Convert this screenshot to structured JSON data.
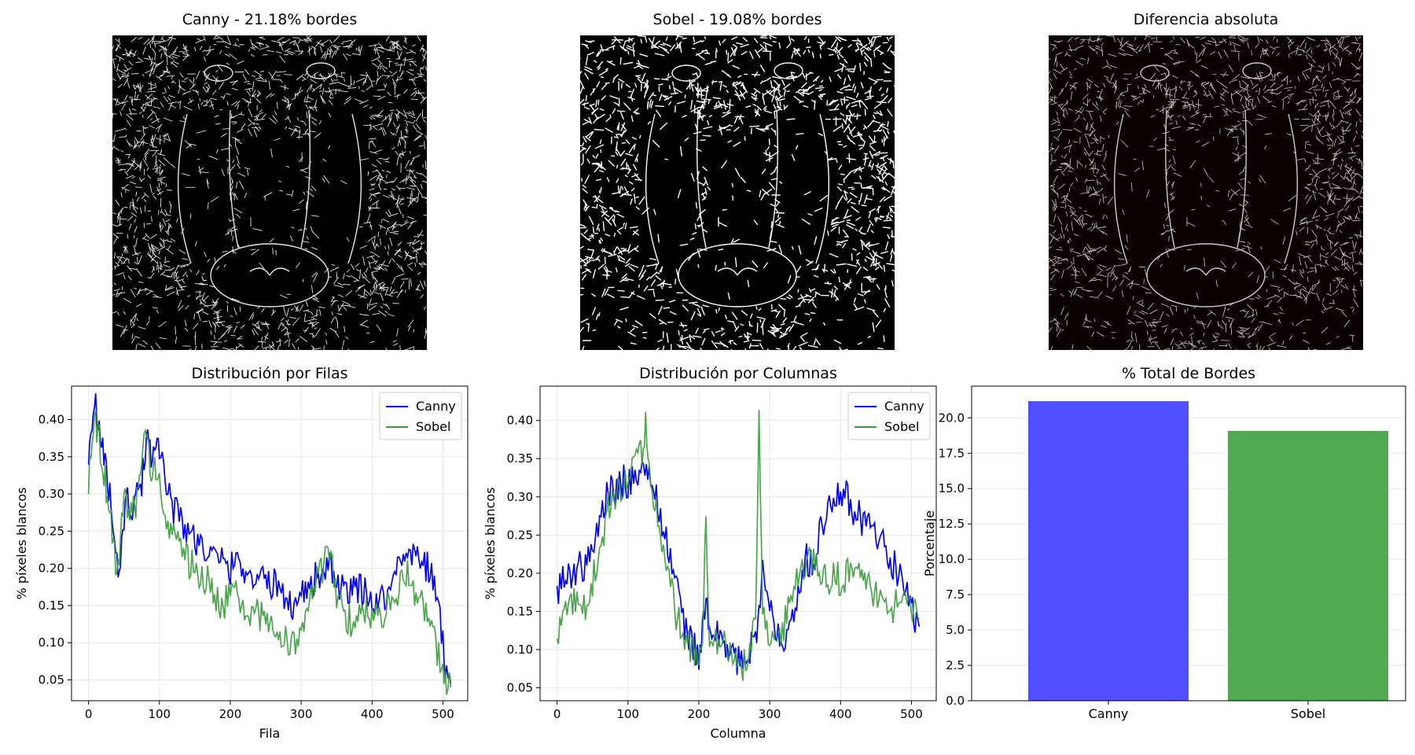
{
  "images": [
    {
      "title": "Canny - 21.18% bordes",
      "icon": "canny-edge-map",
      "background": "#000000",
      "edge_color": "#e8e8e8"
    },
    {
      "title": "Sobel - 19.08% bordes",
      "icon": "sobel-edge-map",
      "background": "#000000",
      "edge_color": "#ffffff"
    },
    {
      "title": "Diferencia absoluta",
      "icon": "difference-map",
      "background": "#0a0202",
      "edge_color": "#d8c8c0"
    }
  ],
  "chart_data": [
    {
      "type": "line",
      "title": "Distribución por Filas",
      "xlabel": "Fila",
      "ylabel": "% píxeles blancos",
      "xlim": [
        -24,
        535
      ],
      "ylim": [
        0.022,
        0.445
      ],
      "xticks": [
        0,
        100,
        200,
        300,
        400,
        500
      ],
      "yticks": [
        0.05,
        0.1,
        0.15,
        0.2,
        0.25,
        0.3,
        0.35,
        0.4
      ],
      "ytick_labels": [
        "0.05",
        "0.10",
        "0.15",
        "0.20",
        "0.25",
        "0.30",
        "0.35",
        "0.40"
      ],
      "grid": true,
      "legend": "top-right",
      "series": [
        {
          "name": "Canny",
          "color": "#0000ff",
          "x": [
            0,
            5,
            10,
            15,
            20,
            25,
            30,
            35,
            40,
            45,
            50,
            55,
            60,
            65,
            70,
            75,
            80,
            85,
            90,
            95,
            100,
            110,
            120,
            130,
            140,
            150,
            160,
            170,
            180,
            190,
            200,
            210,
            220,
            230,
            240,
            250,
            260,
            270,
            280,
            290,
            300,
            310,
            320,
            330,
            340,
            350,
            360,
            370,
            380,
            390,
            400,
            410,
            420,
            430,
            440,
            450,
            460,
            470,
            480,
            490,
            500,
            505,
            511
          ],
          "y": [
            0.36,
            0.4,
            0.42,
            0.38,
            0.36,
            0.33,
            0.3,
            0.26,
            0.2,
            0.21,
            0.27,
            0.29,
            0.28,
            0.29,
            0.3,
            0.31,
            0.36,
            0.37,
            0.35,
            0.38,
            0.37,
            0.31,
            0.28,
            0.27,
            0.25,
            0.24,
            0.23,
            0.22,
            0.21,
            0.21,
            0.2,
            0.21,
            0.2,
            0.19,
            0.19,
            0.18,
            0.18,
            0.17,
            0.16,
            0.15,
            0.17,
            0.17,
            0.19,
            0.19,
            0.2,
            0.18,
            0.17,
            0.17,
            0.17,
            0.17,
            0.16,
            0.15,
            0.17,
            0.18,
            0.21,
            0.23,
            0.22,
            0.21,
            0.2,
            0.17,
            0.1,
            0.06,
            0.045
          ]
        },
        {
          "name": "Sobel",
          "color": "#3a9b3a",
          "x": [
            0,
            5,
            10,
            15,
            20,
            25,
            30,
            35,
            40,
            45,
            50,
            55,
            60,
            65,
            70,
            75,
            80,
            85,
            90,
            95,
            100,
            110,
            120,
            130,
            140,
            150,
            160,
            170,
            180,
            190,
            200,
            210,
            220,
            230,
            240,
            250,
            260,
            270,
            280,
            290,
            300,
            310,
            320,
            330,
            340,
            350,
            360,
            370,
            380,
            390,
            400,
            410,
            420,
            430,
            440,
            450,
            460,
            470,
            480,
            490,
            500,
            505,
            511
          ],
          "y": [
            0.32,
            0.39,
            0.4,
            0.37,
            0.34,
            0.31,
            0.28,
            0.24,
            0.19,
            0.22,
            0.32,
            0.28,
            0.27,
            0.28,
            0.3,
            0.34,
            0.4,
            0.35,
            0.33,
            0.33,
            0.31,
            0.27,
            0.25,
            0.23,
            0.21,
            0.2,
            0.19,
            0.18,
            0.16,
            0.15,
            0.17,
            0.16,
            0.15,
            0.13,
            0.14,
            0.13,
            0.12,
            0.11,
            0.1,
            0.1,
            0.12,
            0.14,
            0.18,
            0.2,
            0.22,
            0.16,
            0.14,
            0.13,
            0.14,
            0.14,
            0.14,
            0.13,
            0.15,
            0.16,
            0.18,
            0.19,
            0.17,
            0.15,
            0.13,
            0.1,
            0.05,
            0.04,
            0.04
          ]
        }
      ]
    },
    {
      "type": "line",
      "title": "Distribución por Columnas",
      "xlabel": "Columna",
      "ylabel": "% píxeles blancos",
      "xlim": [
        -24,
        535
      ],
      "ylim": [
        0.033,
        0.445
      ],
      "xticks": [
        0,
        100,
        200,
        300,
        400,
        500
      ],
      "yticks": [
        0.05,
        0.1,
        0.15,
        0.2,
        0.25,
        0.3,
        0.35,
        0.4
      ],
      "ytick_labels": [
        "0.05",
        "0.10",
        "0.15",
        "0.20",
        "0.25",
        "0.30",
        "0.35",
        "0.40"
      ],
      "grid": true,
      "legend": "top-right",
      "series": [
        {
          "name": "Canny",
          "color": "#0000ff",
          "x": [
            0,
            10,
            20,
            30,
            40,
            50,
            60,
            70,
            80,
            90,
            100,
            110,
            120,
            130,
            140,
            150,
            160,
            170,
            180,
            190,
            200,
            205,
            210,
            215,
            220,
            230,
            240,
            250,
            260,
            270,
            280,
            285,
            290,
            300,
            310,
            320,
            330,
            340,
            350,
            360,
            370,
            380,
            390,
            400,
            410,
            420,
            430,
            440,
            450,
            460,
            470,
            480,
            490,
            500,
            505,
            511
          ],
          "y": [
            0.18,
            0.19,
            0.2,
            0.21,
            0.21,
            0.23,
            0.27,
            0.3,
            0.31,
            0.32,
            0.32,
            0.33,
            0.34,
            0.32,
            0.3,
            0.26,
            0.22,
            0.18,
            0.13,
            0.11,
            0.09,
            0.12,
            0.17,
            0.12,
            0.11,
            0.12,
            0.1,
            0.09,
            0.08,
            0.1,
            0.12,
            0.15,
            0.2,
            0.15,
            0.13,
            0.12,
            0.14,
            0.18,
            0.22,
            0.21,
            0.25,
            0.27,
            0.31,
            0.31,
            0.3,
            0.28,
            0.27,
            0.26,
            0.25,
            0.24,
            0.22,
            0.2,
            0.18,
            0.16,
            0.14,
            0.13
          ]
        },
        {
          "name": "Sobel",
          "color": "#3a9b3a",
          "x": [
            0,
            10,
            20,
            30,
            40,
            50,
            60,
            70,
            80,
            90,
            100,
            110,
            120,
            125,
            130,
            140,
            150,
            160,
            170,
            180,
            190,
            200,
            205,
            210,
            215,
            220,
            230,
            240,
            250,
            260,
            270,
            280,
            285,
            290,
            300,
            310,
            320,
            330,
            340,
            350,
            360,
            370,
            380,
            390,
            400,
            410,
            420,
            430,
            440,
            450,
            460,
            470,
            480,
            490,
            500,
            505,
            511
          ],
          "y": [
            0.11,
            0.15,
            0.16,
            0.17,
            0.16,
            0.19,
            0.22,
            0.28,
            0.3,
            0.31,
            0.33,
            0.36,
            0.36,
            0.4,
            0.33,
            0.29,
            0.23,
            0.18,
            0.14,
            0.11,
            0.1,
            0.09,
            0.12,
            0.26,
            0.12,
            0.11,
            0.11,
            0.1,
            0.08,
            0.07,
            0.1,
            0.13,
            0.41,
            0.15,
            0.12,
            0.11,
            0.13,
            0.17,
            0.2,
            0.21,
            0.22,
            0.21,
            0.19,
            0.2,
            0.19,
            0.2,
            0.21,
            0.2,
            0.18,
            0.17,
            0.16,
            0.15,
            0.16,
            0.17,
            0.14,
            0.16,
            0.14
          ]
        }
      ]
    },
    {
      "type": "bar",
      "title": "% Total de Bordes",
      "xlabel": "",
      "ylabel": "Porcentaje",
      "categories": [
        "Canny",
        "Sobel"
      ],
      "values": [
        21.18,
        19.08
      ],
      "colors": [
        "#4b4bff",
        "#4ea84e"
      ],
      "ylim": [
        0,
        22.24
      ],
      "yticks": [
        0.0,
        2.5,
        5.0,
        7.5,
        10.0,
        12.5,
        15.0,
        17.5,
        20.0
      ],
      "ytick_labels": [
        "0.0",
        "2.5",
        "5.0",
        "7.5",
        "10.0",
        "12.5",
        "15.0",
        "17.5",
        "20.0"
      ],
      "grid": true
    }
  ]
}
